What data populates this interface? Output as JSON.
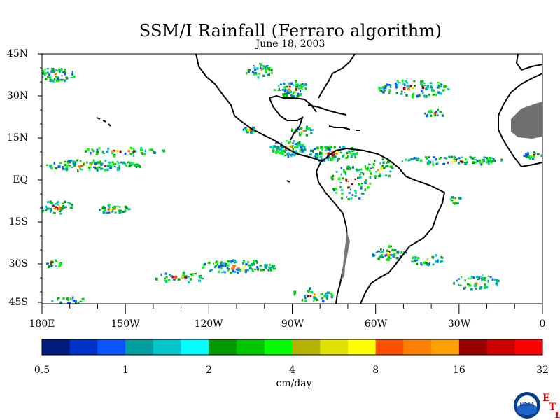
{
  "title": "SSM/I Rainfall (Ferraro algorithm)",
  "date": "June 18, 2003",
  "lat_labels": [
    "45N",
    "30N",
    "15N",
    "EQ",
    "15S",
    "30S",
    "45S"
  ],
  "lon_labels": [
    "180E",
    "150W",
    "120W",
    "90W",
    "60W",
    "30W",
    "0"
  ],
  "colorbar": {
    "colors": [
      "#001a80",
      "#0033cc",
      "#0a55ff",
      "#00a0a0",
      "#00c8cc",
      "#00ffff",
      "#009900",
      "#00c800",
      "#00ff00",
      "#b4b400",
      "#e0e000",
      "#ffff00",
      "#ff5000",
      "#ff8000",
      "#ffa000",
      "#990000",
      "#cc0000",
      "#ff0000"
    ],
    "tick_labels": [
      "0.5",
      "1",
      "2",
      "4",
      "8",
      "16",
      "32"
    ],
    "units": "cm/day"
  },
  "logo": {
    "text": "NOAA",
    "corner_letters": [
      "E",
      "T",
      "L"
    ]
  }
}
